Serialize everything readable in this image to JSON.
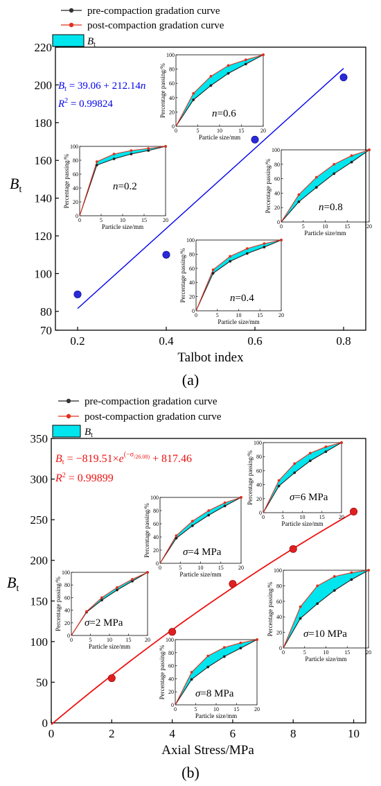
{
  "legend": {
    "pre": "pre-compaction gradation curve",
    "post": "post-compaction gradation curve",
    "band": "B",
    "band_sub": "t"
  },
  "colors": {
    "pre": "#222222",
    "post": "#e0301e",
    "band": "#00e5ee",
    "fit_a": "#0000ee",
    "point_a": "#2a2ad8",
    "fit_b": "#ee1111",
    "point_b": "#e02020"
  },
  "chart_data": [
    {
      "type": "scatter",
      "panel_label": "(a)",
      "xlabel": "Talbot index",
      "ylabel": "B",
      "ylabel_sub": "t",
      "xlim": [
        0.15,
        0.85
      ],
      "ylim": [
        70,
        220
      ],
      "xticks": [
        0.2,
        0.4,
        0.6,
        0.8
      ],
      "yticks": [
        70,
        80,
        100,
        120,
        140,
        160,
        180,
        200,
        220
      ],
      "points": {
        "x": [
          0.2,
          0.4,
          0.6,
          0.8
        ],
        "y": [
          89,
          110,
          171,
          204
        ]
      },
      "fit": {
        "equation": "B_t = 39.06 + 212.14n",
        "eq_main": "B",
        "eq_sub": "t",
        "eq_rest": " = 39.06 + 212.14",
        "eq_var": "n",
        "r2_main": "R",
        "r2_sup": "2",
        "r2_rest": " = 0.99824",
        "x": [
          0.2,
          0.8
        ],
        "y": [
          81.49,
          208.77
        ]
      },
      "insets": [
        {
          "label": "n=0.2",
          "lab_var": "n",
          "lab_rest": "=0.2",
          "xlabel": "Particle size/mm",
          "ylabel": "Percentage passing/%",
          "x": [
            0,
            4,
            8,
            12,
            16,
            20
          ],
          "pre": [
            0,
            73,
            82,
            89,
            94,
            100
          ],
          "post": [
            0,
            78,
            89,
            94,
            97,
            100
          ]
        },
        {
          "label": "n=0.6",
          "lab_var": "n",
          "lab_rest": "=0.6",
          "xlabel": "Particle size/mm",
          "ylabel": "Percentage passing/%",
          "x": [
            0,
            4,
            8,
            12,
            16,
            20
          ],
          "pre": [
            0,
            37,
            57,
            74,
            87,
            100
          ],
          "post": [
            0,
            46,
            70,
            85,
            93,
            100
          ]
        },
        {
          "label": "n=0.8",
          "lab_var": "n",
          "lab_rest": "=0.8",
          "xlabel": "Particle size/mm",
          "ylabel": "Percentage passing/%",
          "x": [
            0,
            4,
            8,
            12,
            16,
            20
          ],
          "pre": [
            0,
            28,
            48,
            67,
            83,
            100
          ],
          "post": [
            0,
            38,
            62,
            80,
            92,
            100
          ]
        },
        {
          "label": "n=0.4",
          "lab_var": "n",
          "lab_rest": "=0.4",
          "xlabel": "Particle size/mm",
          "ylabel": "Percentage passing/%",
          "x": [
            0,
            4,
            8,
            12,
            16,
            20
          ],
          "pre": [
            0,
            53,
            70,
            81,
            90,
            100
          ],
          "post": [
            0,
            58,
            77,
            88,
            95,
            100
          ]
        }
      ]
    },
    {
      "type": "scatter",
      "panel_label": "(b)",
      "xlabel": "Axial Stress/MPa",
      "ylabel": "B",
      "ylabel_sub": "t",
      "xlim": [
        0,
        10.4
      ],
      "ylim": [
        0,
        350
      ],
      "xticks": [
        0,
        2,
        4,
        6,
        8,
        10
      ],
      "yticks": [
        0,
        50,
        100,
        150,
        200,
        250,
        300,
        350
      ],
      "points": {
        "x": [
          2,
          4,
          6,
          8,
          10
        ],
        "y": [
          55,
          112,
          171,
          214,
          260
        ]
      },
      "fit": {
        "equation": "B_t = -819.51×e^(-σ/26.08) + 817.46",
        "eq_main": "B",
        "eq_sub": "t",
        "eq_rest1": " = −819.51×",
        "eq_e": "e",
        "eq_exp_a": "(−σ",
        "eq_exp_b": "/26.08)",
        "eq_rest2": " + 817.46",
        "r2_main": "R",
        "r2_sup": "2",
        "r2_rest": " = 0.99899",
        "a": -819.51,
        "b": 26.08,
        "c": 817.46
      },
      "insets": [
        {
          "label": "σ=2 MPa",
          "lab_var": "σ",
          "lab_rest": "=2 MPa",
          "xlabel": "Particle size/mm",
          "ylabel": "Percentage passing/%",
          "x": [
            0,
            4,
            8,
            12,
            16,
            20
          ],
          "pre": [
            0,
            37,
            56,
            72,
            86,
            100
          ],
          "post": [
            0,
            38,
            60,
            76,
            89,
            100
          ]
        },
        {
          "label": "σ=4 MPa",
          "lab_var": "σ",
          "lab_rest": "=4 MPa",
          "xlabel": "Particle size/mm",
          "ylabel": "Percentage passing/%",
          "x": [
            0,
            4,
            8,
            12,
            16,
            20
          ],
          "pre": [
            0,
            38,
            57,
            73,
            87,
            100
          ],
          "post": [
            0,
            42,
            64,
            80,
            92,
            100
          ]
        },
        {
          "label": "σ=6 MPa",
          "lab_var": "σ",
          "lab_rest": "=6 MPa",
          "xlabel": "Particle size/mm",
          "ylabel": "Percentage passing/%",
          "x": [
            0,
            4,
            8,
            12,
            16,
            20
          ],
          "pre": [
            0,
            38,
            57,
            74,
            87,
            100
          ],
          "post": [
            0,
            46,
            70,
            85,
            94,
            100
          ]
        },
        {
          "label": "σ=8 MPa",
          "lab_var": "σ",
          "lab_rest": "=8 MPa",
          "xlabel": "Particle size/mm",
          "ylabel": "Percentage passing/%",
          "x": [
            0,
            4,
            8,
            12,
            16,
            20
          ],
          "pre": [
            0,
            39,
            58,
            74,
            87,
            100
          ],
          "post": [
            0,
            50,
            75,
            88,
            95,
            100
          ]
        },
        {
          "label": "σ=10 MPa",
          "lab_var": "σ",
          "lab_rest": "=10 MPa",
          "xlabel": "Particle size/mm",
          "ylabel": "Percentage passing/%",
          "x": [
            0,
            4,
            8,
            12,
            16,
            20
          ],
          "pre": [
            0,
            38,
            57,
            74,
            88,
            100
          ],
          "post": [
            0,
            53,
            80,
            92,
            97,
            100
          ]
        }
      ]
    }
  ]
}
